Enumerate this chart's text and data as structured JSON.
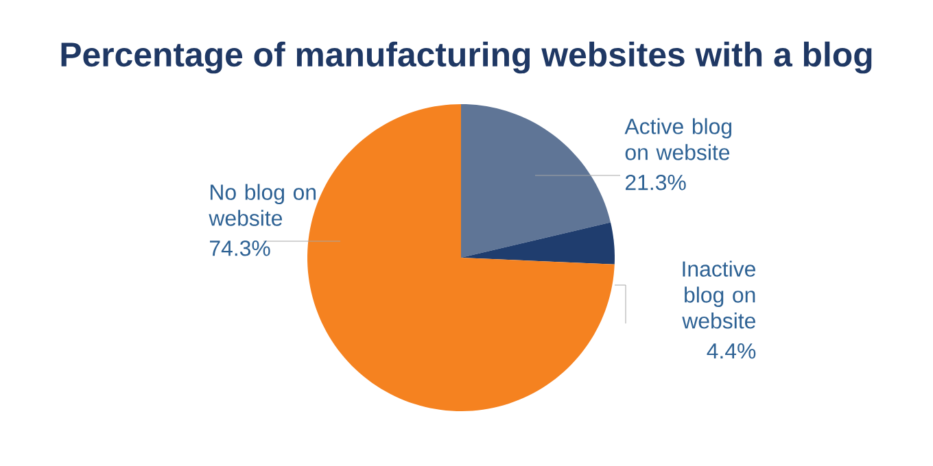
{
  "chart_data": {
    "type": "pie",
    "title": "Percentage of manufacturing websites with a blog",
    "categories": [
      "Active blog on website",
      "Inactive blog on website",
      "No blog on website"
    ],
    "values": [
      21.3,
      4.4,
      74.3
    ],
    "colors": [
      "#5f7596",
      "#1f3d6e",
      "#f58220"
    ],
    "value_labels": [
      "21.3%",
      "4.4%",
      "74.3%"
    ]
  }
}
